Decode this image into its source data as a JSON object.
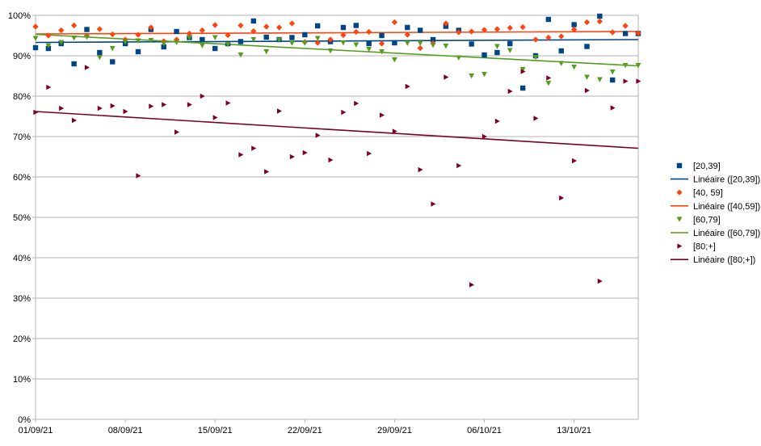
{
  "chart_data": {
    "type": "scatter",
    "title": "",
    "xlabel": "",
    "ylabel": "",
    "ylim": [
      0,
      100
    ],
    "y_ticks": [
      "0%",
      "10%",
      "20%",
      "30%",
      "40%",
      "50%",
      "60%",
      "70%",
      "80%",
      "90%",
      "100%"
    ],
    "x_ticks": [
      {
        "day": 0,
        "label": "01/09/21"
      },
      {
        "day": 7,
        "label": "08/09/21"
      },
      {
        "day": 14,
        "label": "15/09/21"
      },
      {
        "day": 21,
        "label": "22/09/21"
      },
      {
        "day": 28,
        "label": "29/09/21"
      },
      {
        "day": 35,
        "label": "06/10/21"
      },
      {
        "day": 42,
        "label": "13/10/21"
      }
    ],
    "x_start": "01/09/21",
    "x_end": "18/10/21",
    "grid": "horizontal",
    "legend_position": "right",
    "series": [
      {
        "name": "[20,39]",
        "marker": "square",
        "color": "#004586",
        "x": [
          "01/09/21",
          "02/09/21",
          "03/09/21",
          "04/09/21",
          "05/09/21",
          "06/09/21",
          "07/09/21",
          "08/09/21",
          "09/09/21",
          "10/09/21",
          "11/09/21",
          "12/09/21",
          "13/09/21",
          "14/09/21",
          "15/09/21",
          "16/09/21",
          "17/09/21",
          "18/09/21",
          "19/09/21",
          "20/09/21",
          "21/09/21",
          "22/09/21",
          "23/09/21",
          "24/09/21",
          "25/09/21",
          "26/09/21",
          "27/09/21",
          "28/09/21",
          "29/09/21",
          "30/09/21",
          "01/10/21",
          "02/10/21",
          "03/10/21",
          "04/10/21",
          "05/10/21",
          "06/10/21",
          "07/10/21",
          "08/10/21",
          "09/10/21",
          "10/10/21",
          "11/10/21",
          "12/10/21",
          "13/10/21",
          "14/10/21",
          "15/10/21",
          "16/10/21",
          "17/10/21",
          "18/10/21"
        ],
        "y": [
          92,
          91.8,
          93,
          88,
          96.5,
          90.8,
          88.5,
          93,
          91,
          96.5,
          92.2,
          96,
          94.5,
          94,
          91.8,
          93,
          93.5,
          98.6,
          94.6,
          94,
          94.5,
          95.2,
          97.4,
          93.5,
          97,
          97.5,
          93,
          95,
          93.2,
          97,
          96.3,
          94,
          97.3,
          96.3,
          92.9,
          90.2,
          90.8,
          93,
          82,
          90,
          99,
          91.2,
          97.7,
          92.3,
          99.8,
          84,
          95.5,
          95.5
        ]
      },
      {
        "name": "Linéaire ([20,39])",
        "line": true,
        "color": "#004586",
        "trend": [
          93.3,
          94.0
        ]
      },
      {
        "name": "[40, 59]",
        "marker": "diamond",
        "color": "#ff420e",
        "x": [
          "01/09/21",
          "02/09/21",
          "03/09/21",
          "04/09/21",
          "05/09/21",
          "06/09/21",
          "07/09/21",
          "08/09/21",
          "09/09/21",
          "10/09/21",
          "11/09/21",
          "12/09/21",
          "13/09/21",
          "14/09/21",
          "15/09/21",
          "16/09/21",
          "17/09/21",
          "18/09/21",
          "19/09/21",
          "20/09/21",
          "21/09/21",
          "22/09/21",
          "23/09/21",
          "24/09/21",
          "25/09/21",
          "26/09/21",
          "27/09/21",
          "28/09/21",
          "29/09/21",
          "30/09/21",
          "01/10/21",
          "02/10/21",
          "03/10/21",
          "04/10/21",
          "05/10/21",
          "06/10/21",
          "07/10/21",
          "08/10/21",
          "09/10/21",
          "10/10/21",
          "11/10/21",
          "12/10/21",
          "13/10/21",
          "14/10/21",
          "15/10/21",
          "16/10/21",
          "17/10/21",
          "18/10/21"
        ],
        "y": [
          97.2,
          95,
          96.3,
          97.5,
          95,
          96.6,
          95.3,
          94,
          95.2,
          97,
          93.6,
          94,
          95.5,
          96.3,
          97.6,
          95.1,
          97.5,
          96.1,
          97.2,
          97,
          98,
          93.4,
          93.2,
          94,
          95.1,
          95.9,
          95.9,
          93,
          98.3,
          95.2,
          91.9,
          93.1,
          98,
          95.8,
          96,
          96.4,
          96.6,
          96.9,
          97.1,
          94,
          94.5,
          94.8,
          96.5,
          98.3,
          98.5,
          95.8,
          97.4,
          95.6
        ]
      },
      {
        "name": "Linéaire ([40,59])",
        "line": true,
        "color": "#ff420e",
        "trend": [
          95.4,
          96.0
        ]
      },
      {
        "name": "[60,79]",
        "marker": "triangle-down",
        "color": "#579d1c",
        "x": [
          "01/09/21",
          "02/09/21",
          "03/09/21",
          "04/09/21",
          "05/09/21",
          "06/09/21",
          "07/09/21",
          "08/09/21",
          "09/09/21",
          "10/09/21",
          "11/09/21",
          "12/09/21",
          "13/09/21",
          "14/09/21",
          "15/09/21",
          "16/09/21",
          "17/09/21",
          "18/09/21",
          "19/09/21",
          "20/09/21",
          "21/09/21",
          "22/09/21",
          "23/09/21",
          "24/09/21",
          "25/09/21",
          "26/09/21",
          "27/09/21",
          "28/09/21",
          "29/09/21",
          "30/09/21",
          "01/10/21",
          "02/10/21",
          "03/10/21",
          "04/10/21",
          "05/10/21",
          "06/10/21",
          "07/10/21",
          "08/10/21",
          "09/10/21",
          "10/10/21",
          "11/10/21",
          "12/10/21",
          "13/10/21",
          "14/10/21",
          "15/10/21",
          "16/10/21",
          "17/10/21",
          "18/10/21"
        ],
        "y": [
          94.3,
          92.5,
          93.3,
          94.4,
          94.6,
          89.6,
          91.8,
          93.4,
          93.7,
          93.8,
          93,
          93.3,
          94.5,
          92.5,
          94.5,
          92.8,
          90.2,
          94,
          91,
          93.9,
          93.1,
          93.1,
          94.3,
          91.2,
          93.2,
          92.7,
          91.6,
          91,
          89,
          93.1,
          93.1,
          92.6,
          92.4,
          89.5,
          85,
          85.4,
          92.3,
          91.3,
          86.6,
          89.6,
          83.2,
          88.1,
          87.2,
          84.7,
          84.1,
          86,
          87.6,
          87.6
        ]
      },
      {
        "name": "Linéaire ([60,79])",
        "line": true,
        "color": "#579d1c",
        "trend": [
          95.3,
          87.5
        ]
      },
      {
        "name": "[80;+]",
        "marker": "triangle-right",
        "color": "#7e0021",
        "x": [
          "01/09/21",
          "02/09/21",
          "03/09/21",
          "04/09/21",
          "05/09/21",
          "06/09/21",
          "07/09/21",
          "08/09/21",
          "09/09/21",
          "10/09/21",
          "11/09/21",
          "12/09/21",
          "13/09/21",
          "14/09/21",
          "15/09/21",
          "16/09/21",
          "17/09/21",
          "18/09/21",
          "19/09/21",
          "20/09/21",
          "21/09/21",
          "22/09/21",
          "23/09/21",
          "24/09/21",
          "25/09/21",
          "26/09/21",
          "27/09/21",
          "28/09/21",
          "29/09/21",
          "30/09/21",
          "01/10/21",
          "02/10/21",
          "03/10/21",
          "04/10/21",
          "05/10/21",
          "06/10/21",
          "07/10/21",
          "08/10/21",
          "09/10/21",
          "10/10/21",
          "11/10/21",
          "12/10/21",
          "13/10/21",
          "14/10/21",
          "15/10/21",
          "16/10/21",
          "17/10/21",
          "18/10/21"
        ],
        "y": [
          76,
          82.2,
          77,
          74,
          87.1,
          77,
          77.6,
          76.2,
          60.3,
          77.5,
          77.9,
          71.1,
          77.9,
          80,
          74.7,
          78.3,
          65.5,
          67.1,
          61.3,
          76.3,
          65,
          66,
          70.3,
          64.2,
          76,
          78.2,
          65.8,
          75.3,
          71.3,
          82.4,
          61.8,
          53.3,
          84.7,
          62.8,
          33.3,
          70,
          73.8,
          81.2,
          86.1,
          74.5,
          84.5,
          54.8,
          64,
          81.4,
          34.2,
          77.1,
          83.7,
          83.7
        ]
      },
      {
        "name": "Linéaire ([80;+])",
        "line": true,
        "color": "#7e0021",
        "trend": [
          76.2,
          67.1
        ]
      }
    ]
  }
}
